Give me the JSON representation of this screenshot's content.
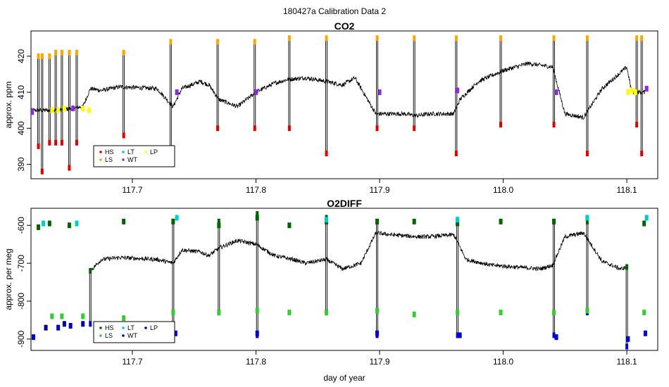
{
  "figure_title": "180427a   Calibration Data 2",
  "xlabel": "day of year",
  "colors": {
    "trace": "#000000",
    "HS": "#dd0000",
    "LS": "#ffa500",
    "LT": "#00cccc",
    "WT": "#8a2be2",
    "LP": "#ffff00",
    "HS2": "#006400",
    "LS2": "#32cd32",
    "LT2": "#00cccc",
    "WT2": "#0000cd",
    "LP2": "#00008b"
  },
  "chart_data": [
    {
      "type": "line",
      "title": "CO2",
      "ylabel": "approx. ppm",
      "xlim": [
        117.618,
        118.125
      ],
      "ylim": [
        386,
        427
      ],
      "xticks": [
        117.7,
        117.8,
        117.9,
        118.0,
        118.1
      ],
      "xtick_labels": [
        "117.7",
        "117.8",
        "117.9",
        "118.0",
        "118.1"
      ],
      "yticks": [
        390,
        400,
        410,
        420
      ],
      "ytick_labels": [
        "390",
        "400",
        "410",
        "420"
      ],
      "grid": false,
      "legend": {
        "placement": "bottom-left",
        "entries": [
          {
            "label": "HS",
            "color": "#dd0000"
          },
          {
            "label": "LS",
            "color": "#ffa500"
          },
          {
            "label": "LT",
            "color": "#00cccc"
          },
          {
            "label": "WT",
            "color": "#8a2be2"
          },
          {
            "label": "LP",
            "color": "#ffff00"
          }
        ]
      },
      "trace": {
        "x": [
          117.618,
          117.64,
          117.66,
          117.666,
          117.675,
          117.69,
          117.72,
          117.733,
          117.74,
          117.755,
          117.762,
          117.77,
          117.785,
          117.8,
          117.815,
          117.825,
          117.84,
          117.857,
          117.87,
          117.88,
          117.897,
          117.92,
          117.93,
          117.94,
          117.96,
          117.965,
          117.98,
          118.0,
          118.02,
          118.04,
          118.05,
          118.065,
          118.08,
          118.1,
          118.104,
          118.115
        ],
        "y": [
          405,
          405,
          406,
          411,
          410.5,
          411.5,
          411,
          406,
          411,
          413,
          412,
          408,
          406,
          410,
          412.5,
          413.5,
          414,
          413,
          412,
          414,
          404,
          404,
          403.5,
          404,
          404,
          408,
          413,
          416,
          418,
          417,
          404,
          403,
          411,
          417,
          410,
          410
        ]
      },
      "spikes": [
        {
          "x": 117.624,
          "low": 395,
          "high": 420
        },
        {
          "x": 117.627,
          "low": 388,
          "high": 420
        },
        {
          "x": 117.633,
          "low": 396,
          "high": 420
        },
        {
          "x": 117.638,
          "low": 396,
          "high": 421
        },
        {
          "x": 117.643,
          "low": 396,
          "high": 421
        },
        {
          "x": 117.649,
          "low": 389,
          "high": 421
        },
        {
          "x": 117.655,
          "low": 396,
          "high": 421
        },
        {
          "x": 117.693,
          "low": 398,
          "high": 421
        },
        {
          "x": 117.731,
          "low": 392,
          "high": 424
        },
        {
          "x": 117.769,
          "low": 400,
          "high": 424
        },
        {
          "x": 117.799,
          "low": 400,
          "high": 424
        },
        {
          "x": 117.827,
          "low": 400,
          "high": 425
        },
        {
          "x": 117.857,
          "low": 393,
          "high": 425
        },
        {
          "x": 117.898,
          "low": 400,
          "high": 425
        },
        {
          "x": 117.928,
          "low": 400,
          "high": 425
        },
        {
          "x": 117.962,
          "low": 393,
          "high": 425
        },
        {
          "x": 117.998,
          "low": 401,
          "high": 425
        },
        {
          "x": 118.041,
          "low": 401,
          "high": 425
        },
        {
          "x": 118.068,
          "low": 393,
          "high": 425
        },
        {
          "x": 118.108,
          "low": 401,
          "high": 425
        },
        {
          "x": 118.112,
          "low": 393,
          "high": 425
        }
      ],
      "markers": [
        {
          "group": "LP",
          "x": [
            117.635,
            117.64,
            117.645,
            117.66,
            117.665
          ],
          "y": [
            405,
            405,
            405.5,
            405.5,
            405
          ]
        },
        {
          "group": "WT",
          "x": [
            117.619,
            117.652,
            117.736,
            117.8,
            117.9,
            117.963,
            118.043,
            118.116
          ],
          "y": [
            404.5,
            405.5,
            410,
            410,
            410,
            410.5,
            410,
            411
          ]
        },
        {
          "group": "LP",
          "x": [
            118.101,
            118.104,
            118.107
          ],
          "y": [
            410,
            410.5,
            410
          ]
        }
      ]
    },
    {
      "type": "line",
      "title": "O2DIFF",
      "ylabel": "approx. per meg",
      "xlim": [
        117.618,
        118.125
      ],
      "ylim": [
        -930,
        -555
      ],
      "xticks": [
        117.7,
        117.8,
        117.9,
        118.0,
        118.1
      ],
      "xtick_labels": [
        "117.7",
        "117.8",
        "117.9",
        "118.0",
        "118.1"
      ],
      "yticks": [
        -900,
        -800,
        -700,
        -600
      ],
      "ytick_labels": [
        "-900",
        "-800",
        "-700",
        "-600"
      ],
      "grid": false,
      "legend": {
        "placement": "bottom-left",
        "entries": [
          {
            "label": "HS",
            "color": "#006400"
          },
          {
            "label": "LS",
            "color": "#32cd32"
          },
          {
            "label": "LT",
            "color": "#00cccc"
          },
          {
            "label": "WT",
            "color": "#0000cd"
          },
          {
            "label": "LP",
            "color": "#00008b"
          }
        ]
      },
      "trace": {
        "x": [
          117.666,
          117.675,
          117.69,
          117.72,
          117.733,
          117.74,
          117.755,
          117.762,
          117.77,
          117.785,
          117.8,
          117.815,
          117.83,
          117.84,
          117.857,
          117.87,
          117.885,
          117.897,
          117.91,
          117.93,
          117.94,
          117.96,
          117.97,
          117.99,
          118.01,
          118.03,
          118.04,
          118.05,
          118.065,
          118.08,
          118.095,
          118.1
        ],
        "y": [
          -720,
          -690,
          -685,
          -690,
          -700,
          -665,
          -670,
          -680,
          -660,
          -640,
          -650,
          -680,
          -690,
          -700,
          -690,
          -715,
          -700,
          -620,
          -625,
          -630,
          -630,
          -625,
          -690,
          -705,
          -710,
          -715,
          -705,
          -630,
          -620,
          -695,
          -715,
          -710
        ]
      },
      "spikes": [
        {
          "x": 117.666,
          "low": -860,
          "high": -720
        },
        {
          "x": 117.733,
          "low": -890,
          "high": -590
        },
        {
          "x": 117.77,
          "low": -830,
          "high": -590
        },
        {
          "x": 117.801,
          "low": -890,
          "high": -570
        },
        {
          "x": 117.857,
          "low": -830,
          "high": -580
        },
        {
          "x": 117.898,
          "low": -890,
          "high": -590
        },
        {
          "x": 117.963,
          "low": -890,
          "high": -590
        },
        {
          "x": 118.041,
          "low": -890,
          "high": -590
        },
        {
          "x": 118.068,
          "low": -830,
          "high": -590
        },
        {
          "x": 118.1,
          "low": -920,
          "high": -710
        }
      ],
      "markers": [
        {
          "group": "HS",
          "x": [
            117.624,
            117.633,
            117.649,
            117.693,
            117.733,
            117.77,
            117.801,
            117.827,
            117.857,
            117.898,
            117.928,
            117.963,
            117.998,
            118.041,
            118.068,
            118.114
          ],
          "y": [
            -605,
            -595,
            -600,
            -590,
            -590,
            -600,
            -580,
            -600,
            -590,
            -590,
            -590,
            -595,
            -590,
            -590,
            -580,
            -595
          ]
        },
        {
          "group": "LS",
          "x": [
            117.635,
            117.643,
            117.66,
            117.693,
            117.733,
            117.77,
            117.801,
            117.827,
            117.857,
            117.898,
            117.928,
            117.963,
            117.998,
            118.041,
            118.068,
            118.114
          ],
          "y": [
            -840,
            -840,
            -840,
            -845,
            -830,
            -830,
            -825,
            -830,
            -830,
            -825,
            -835,
            -830,
            -830,
            -830,
            -825,
            -830
          ]
        },
        {
          "group": "LT",
          "x": [
            117.628,
            117.655,
            117.736,
            117.857,
            117.963,
            118.068,
            118.116
          ],
          "y": [
            -595,
            -595,
            -580,
            -585,
            -585,
            -580,
            -580
          ]
        },
        {
          "group": "WT",
          "x": [
            117.62,
            117.64,
            117.65,
            117.735,
            117.801,
            117.898,
            117.965,
            118.043,
            118.101,
            118.115
          ],
          "y": [
            -895,
            -870,
            -865,
            -885,
            -885,
            -885,
            -890,
            -895,
            -900,
            -885
          ]
        },
        {
          "group": "LP",
          "x": [
            117.63,
            117.645,
            117.66
          ],
          "y": [
            -870,
            -860,
            -860
          ]
        }
      ]
    }
  ]
}
